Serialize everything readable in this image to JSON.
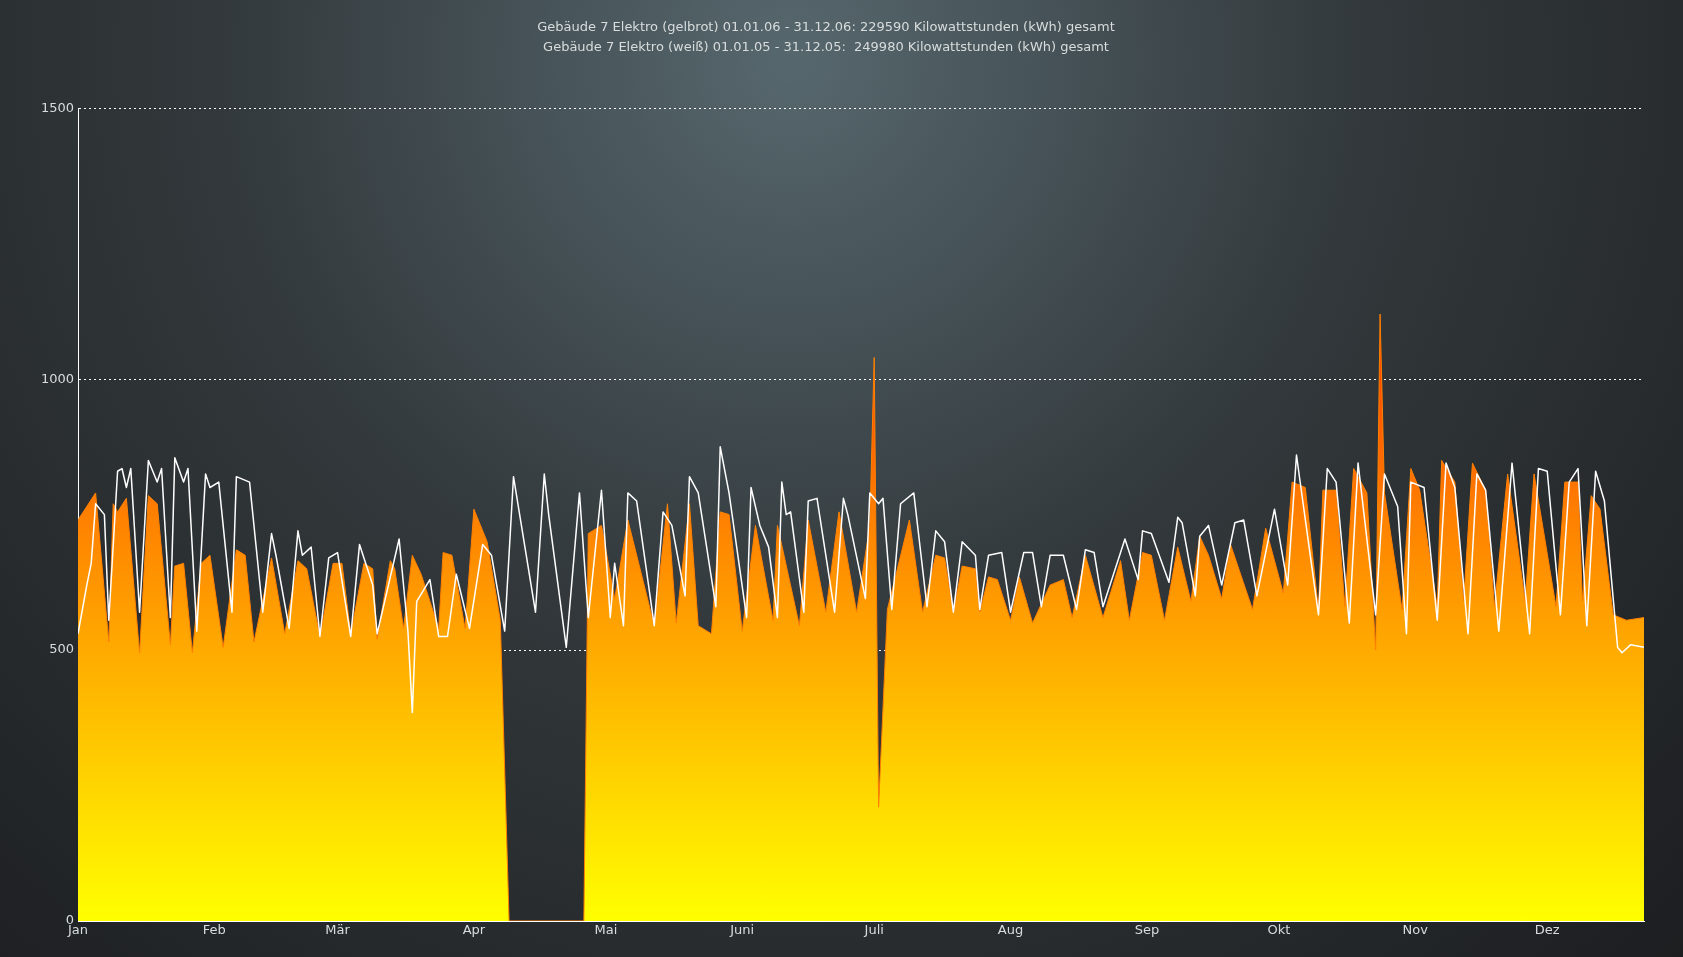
{
  "chart_data": {
    "type": "area",
    "title": "Gebäude 7 Elektro (gelbrot) 01.01.06 - 31.12.06: 229590 Kilowattstunden (kWh) gesamt",
    "subtitle": "Gebäude 7 Elektro (weiß) 01.01.05 - 31.12.05:  249980 Kilowattstunden (kWh) gesamt",
    "xlim": [
      "--01-01",
      "--12-23"
    ],
    "xticks": [
      {
        "value": "--01-01",
        "label": "Jan"
      },
      {
        "value": "--02-01",
        "label": "Feb"
      },
      {
        "value": "--03-01",
        "label": "Mär"
      },
      {
        "value": "--04-01",
        "label": "Apr"
      },
      {
        "value": "--05-01",
        "label": "Mai"
      },
      {
        "value": "--06-01",
        "label": "Juni"
      },
      {
        "value": "--07-01",
        "label": "Juli"
      },
      {
        "value": "--08-01",
        "label": "Aug"
      },
      {
        "value": "--09-01",
        "label": "Sep"
      },
      {
        "value": "--10-01",
        "label": "Okt"
      },
      {
        "value": "--11-01",
        "label": "Nov"
      },
      {
        "value": "--12-01",
        "label": "Dez"
      }
    ],
    "ylim": [
      0,
      1500
    ],
    "yticks": [
      0,
      500,
      1000,
      1500
    ],
    "grid": "y",
    "series": [
      {
        "color": "#ff8000",
        "x": [
          "--01-01",
          "--01-05",
          "--01-08",
          "--01-09",
          "--01-10",
          "--01-12",
          "--01-15",
          "--01-17",
          "--01-19",
          "--01-22",
          "--01-23",
          "--01-25",
          "--01-27",
          "--01-29",
          "--01-31",
          "--02-03",
          "--02-06",
          "--02-08",
          "--02-10",
          "--02-14",
          "--02-17",
          "--02-20",
          "--02-22",
          "--02-25",
          "--02-28",
          "--03-02",
          "--03-04",
          "--03-07",
          "--03-09",
          "--03-10",
          "--03-13",
          "--03-14",
          "--03-16",
          "--03-18",
          "--03-20",
          "--03-24",
          "--03-25",
          "--03-27",
          "--03-30",
          "--04-01",
          "--04-04",
          "--04-07",
          "--04-09",
          "--04-26",
          "--04-27",
          "--04-30",
          "--05-03",
          "--05-06",
          "--05-12",
          "--05-15",
          "--05-17",
          "--05-20",
          "--05-22",
          "--05-25",
          "--05-27",
          "--05-29",
          "--06-01",
          "--06-04",
          "--06-08",
          "--06-09",
          "--06-14",
          "--06-16",
          "--06-20",
          "--06-23",
          "--06-27",
          "--06-30",
          "--07-01",
          "--07-02",
          "--07-04",
          "--07-09",
          "--07-12",
          "--07-15",
          "--07-17",
          "--07-19",
          "--07-21",
          "--07-24",
          "--07-25",
          "--07-27",
          "--07-29",
          "--08-01",
          "--08-03",
          "--08-06",
          "--08-10",
          "--08-13",
          "--08-15",
          "--08-18",
          "--08-22",
          "--08-26",
          "--08-28",
          "--08-31",
          "--09-02",
          "--09-05",
          "--09-08",
          "--09-11",
          "--09-13",
          "--09-15",
          "--09-18",
          "--09-20",
          "--09-25",
          "--09-28",
          "--10-02",
          "--10-04",
          "--10-07",
          "--10-10",
          "--10-11",
          "--10-14",
          "--10-16",
          "--10-18",
          "--10-21",
          "--10-23",
          "--10-24",
          "--10-25",
          "--10-29",
          "--10-31",
          "--11-02",
          "--11-06",
          "--11-07",
          "--11-10",
          "--11-12",
          "--11-14",
          "--11-17",
          "--11-19",
          "--11-22",
          "--11-26",
          "--11-28",
          "--12-03",
          "--12-05",
          "--12-08",
          "--12-09",
          "--12-11",
          "--12-13",
          "--12-16",
          "--12-19",
          "--12-23"
        ],
        "values": [
          740,
          790,
          515,
          770,
          755,
          780,
          495,
          785,
          770,
          510,
          655,
          660,
          495,
          660,
          675,
          505,
          685,
          675,
          515,
          670,
          530,
          665,
          650,
          525,
          660,
          660,
          530,
          660,
          650,
          520,
          665,
          650,
          540,
          675,
          640,
          540,
          680,
          675,
          540,
          760,
          700,
          555,
          0,
          0,
          715,
          730,
          595,
          740,
          545,
          770,
          550,
          770,
          545,
          530,
          755,
          750,
          535,
          730,
          555,
          730,
          545,
          740,
          570,
          755,
          570,
          730,
          1040,
          210,
          575,
          740,
          570,
          675,
          670,
          570,
          655,
          650,
          570,
          635,
          630,
          555,
          635,
          550,
          620,
          630,
          560,
          675,
          560,
          665,
          555,
          680,
          675,
          555,
          690,
          590,
          710,
          675,
          595,
          695,
          575,
          725,
          605,
          810,
          800,
          575,
          795,
          795,
          580,
          835,
          790,
          500,
          1120,
          790,
          575,
          835,
          795,
          580,
          850,
          810,
          590,
          845,
          795,
          580,
          825,
          590,
          825,
          580,
          810,
          810,
          590,
          785,
          760,
          565,
          555,
          560
        ]
      },
      {
        "type": "line",
        "color": "#ffffff",
        "x": [
          "--01-01",
          "--01-03",
          "--01-04",
          "--01-05",
          "--01-07",
          "--01-08",
          "--01-10",
          "--01-11",
          "--01-12",
          "--01-13",
          "--01-15",
          "--01-17",
          "--01-19",
          "--01-20",
          "--01-22",
          "--01-23",
          "--01-25",
          "--01-26",
          "--01-28",
          "--01-30",
          "--01-31",
          "--02-02",
          "--02-05",
          "--02-06",
          "--02-09",
          "--02-12",
          "--02-14",
          "--02-15",
          "--02-18",
          "--02-20",
          "--02-21",
          "--02-23",
          "--02-25",
          "--02-27",
          "--03-01",
          "--03-04",
          "--03-06",
          "--03-09",
          "--03-10",
          "--03-15",
          "--03-17",
          "--03-18",
          "--03-19",
          "--03-22",
          "--03-24",
          "--03-26",
          "--03-28",
          "--03-31",
          "--04-03",
          "--04-05",
          "--04-08",
          "--04-10",
          "--04-15",
          "--04-17",
          "--04-18",
          "--04-22",
          "--04-25",
          "--04-27",
          "--04-30",
          "--05-02",
          "--05-03",
          "--05-05",
          "--05-06",
          "--05-08",
          "--05-12",
          "--05-14",
          "--05-16",
          "--05-19",
          "--05-20",
          "--05-22",
          "--05-26",
          "--05-27",
          "--05-29",
          "--06-02",
          "--06-03",
          "--06-05",
          "--06-07",
          "--06-09",
          "--06-10",
          "--06-11",
          "--06-12",
          "--06-15",
          "--06-16",
          "--06-18",
          "--06-22",
          "--06-24",
          "--06-25",
          "--06-29",
          "--06-30",
          "--07-02",
          "--07-03",
          "--07-05",
          "--07-07",
          "--07-10",
          "--07-13",
          "--07-15",
          "--07-17",
          "--07-19",
          "--07-21",
          "--07-24",
          "--07-25",
          "--07-27",
          "--07-30",
          "--08-01",
          "--08-04",
          "--08-06",
          "--08-08",
          "--08-10",
          "--08-13",
          "--08-16",
          "--08-18",
          "--08-20",
          "--08-22",
          "--08-27",
          "--08-30",
          "--08-31",
          "--09-02",
          "--09-06",
          "--09-08",
          "--09-09",
          "--09-12",
          "--09-13",
          "--09-15",
          "--09-18",
          "--09-21",
          "--09-23",
          "--09-26",
          "--09-30",
          "--10-03",
          "--10-05",
          "--10-06",
          "--10-10",
          "--10-12",
          "--10-14",
          "--10-17",
          "--10-19",
          "--10-23",
          "--10-25",
          "--10-28",
          "--10-30",
          "--10-31",
          "--11-03",
          "--11-06",
          "--11-08",
          "--11-10",
          "--11-13",
          "--11-15",
          "--11-17",
          "--11-20",
          "--11-23",
          "--11-27",
          "--11-29",
          "--12-01",
          "--12-04",
          "--12-06",
          "--12-08",
          "--12-10",
          "--12-12",
          "--12-14",
          "--12-17",
          "--12-18",
          "--12-20",
          "--12-23"
        ],
        "values": [
          530,
          620,
          660,
          770,
          750,
          555,
          830,
          835,
          800,
          835,
          570,
          850,
          810,
          835,
          560,
          855,
          810,
          835,
          535,
          825,
          800,
          810,
          570,
          820,
          810,
          570,
          715,
          675,
          540,
          720,
          675,
          690,
          525,
          670,
          680,
          525,
          695,
          620,
          530,
          705,
          535,
          385,
          590,
          630,
          525,
          525,
          640,
          540,
          695,
          675,
          535,
          820,
          570,
          825,
          750,
          505,
          790,
          560,
          795,
          560,
          660,
          545,
          790,
          775,
          545,
          755,
          730,
          600,
          820,
          790,
          580,
          875,
          790,
          560,
          800,
          730,
          690,
          560,
          810,
          750,
          755,
          570,
          775,
          780,
          570,
          780,
          750,
          595,
          790,
          770,
          780,
          575,
          770,
          790,
          580,
          720,
          700,
          570,
          700,
          675,
          575,
          675,
          680,
          570,
          680,
          680,
          580,
          675,
          675,
          575,
          685,
          680,
          580,
          705,
          630,
          720,
          715,
          625,
          745,
          735,
          600,
          710,
          730,
          620,
          735,
          740,
          600,
          760,
          620,
          860,
          800,
          565,
          835,
          810,
          550,
          845,
          565,
          825,
          765,
          530,
          810,
          800,
          555,
          845,
          800,
          530,
          825,
          795,
          535,
          845,
          530,
          835,
          830,
          565,
          810,
          835,
          545,
          830,
          775,
          505,
          495,
          510,
          505
        ]
      }
    ]
  }
}
